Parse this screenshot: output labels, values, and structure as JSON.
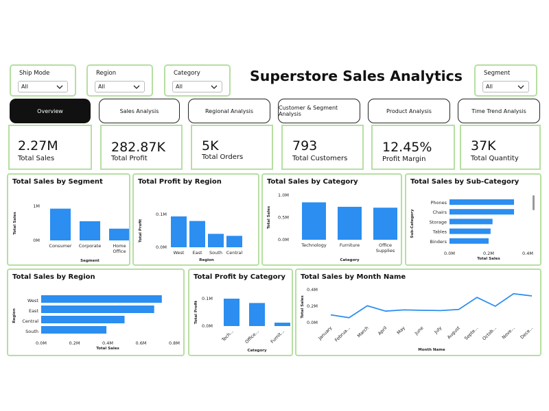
{
  "title": "Superstore Sales Analytics",
  "colors": {
    "accent": "#2b8ef0",
    "border": "#b5dfa0",
    "active_tab": "#111111"
  },
  "slicers": {
    "ship_mode": {
      "label": "Ship Mode",
      "value": "All"
    },
    "region": {
      "label": "Region",
      "value": "All"
    },
    "category": {
      "label": "Category",
      "value": "All"
    },
    "segment": {
      "label": "Segment",
      "value": "All"
    }
  },
  "tabs": [
    "Overview",
    "Sales Analysis",
    "Regional Analysis",
    "Customer & Segment Analysis",
    "Product Analysis",
    "Time Trend Analysis"
  ],
  "kpis": [
    {
      "value": "2.27M",
      "label": "Total Sales"
    },
    {
      "value": "282.87K",
      "label": "Total Profit"
    },
    {
      "value": "5K",
      "label": "Total Orders"
    },
    {
      "value": "793",
      "label": "Total Customers"
    },
    {
      "value": "12.45%",
      "label": "Profit Margin"
    },
    {
      "value": "37K",
      "label": "Total Quantity"
    }
  ],
  "chart_data": [
    {
      "type": "bar",
      "title": "Total Sales by Segment",
      "xlabel": "Segment",
      "ylabel": "Total Sales",
      "categories": [
        "Consumer",
        "Corporate",
        "Home Office"
      ],
      "values": [
        1.16,
        0.7,
        0.43
      ],
      "yticks": [
        "1M",
        "0M"
      ]
    },
    {
      "type": "bar",
      "title": "Total Profit by Region",
      "xlabel": "Region",
      "ylabel": "Total Profit",
      "categories": [
        "West",
        "East",
        "South",
        "Central"
      ],
      "values": [
        0.108,
        0.092,
        0.047,
        0.04
      ],
      "yticks": [
        "0.1M",
        "0.0M"
      ]
    },
    {
      "type": "bar",
      "title": "Total Sales by Category",
      "xlabel": "Category",
      "ylabel": "Total Sales",
      "categories": [
        "Technology",
        "Furniture",
        "Office Supplies"
      ],
      "values": [
        0.84,
        0.74,
        0.72
      ],
      "yticks": [
        "1.0M",
        "0.5M",
        "0.0M"
      ]
    },
    {
      "type": "bar",
      "title": "Total Sales by Sub-Category",
      "xlabel": "Total Sales",
      "ylabel": "Sub-Category",
      "categories": [
        "Phones",
        "Chairs",
        "Storage",
        "Tables",
        "Binders"
      ],
      "values": [
        0.33,
        0.33,
        0.22,
        0.21,
        0.2
      ],
      "xticks": [
        "0.0M",
        "0.2M",
        "0.4M"
      ]
    },
    {
      "type": "bar",
      "title": "Total Sales by Region",
      "xlabel": "Total Sales",
      "ylabel": "Region",
      "categories": [
        "West",
        "East",
        "Central",
        "South"
      ],
      "values": [
        0.725,
        0.679,
        0.501,
        0.392
      ],
      "xticks": [
        "0.0M",
        "0.2M",
        "0.4M",
        "0.6M",
        "0.8M"
      ]
    },
    {
      "type": "bar",
      "title": "Total Profit by Category",
      "xlabel": "Category",
      "ylabel": "Total Profit",
      "categories": [
        "Tech...",
        "Office...",
        "Furnit..."
      ],
      "values": [
        0.145,
        0.122,
        0.018
      ],
      "yticks": [
        "0.1M",
        "0.0M"
      ]
    },
    {
      "type": "line",
      "title": "Total Sales by Month Name",
      "xlabel": "Month Name",
      "ylabel": "Total Sales",
      "categories": [
        "January",
        "Februa...",
        "March",
        "April",
        "May",
        "June",
        "July",
        "August",
        "Septe...",
        "Octob...",
        "Nove...",
        "Dece..."
      ],
      "values": [
        0.095,
        0.06,
        0.205,
        0.14,
        0.155,
        0.15,
        0.147,
        0.16,
        0.307,
        0.2,
        0.352,
        0.325
      ],
      "yticks": [
        "0.4M",
        "0.2M",
        "0.0M"
      ]
    }
  ]
}
